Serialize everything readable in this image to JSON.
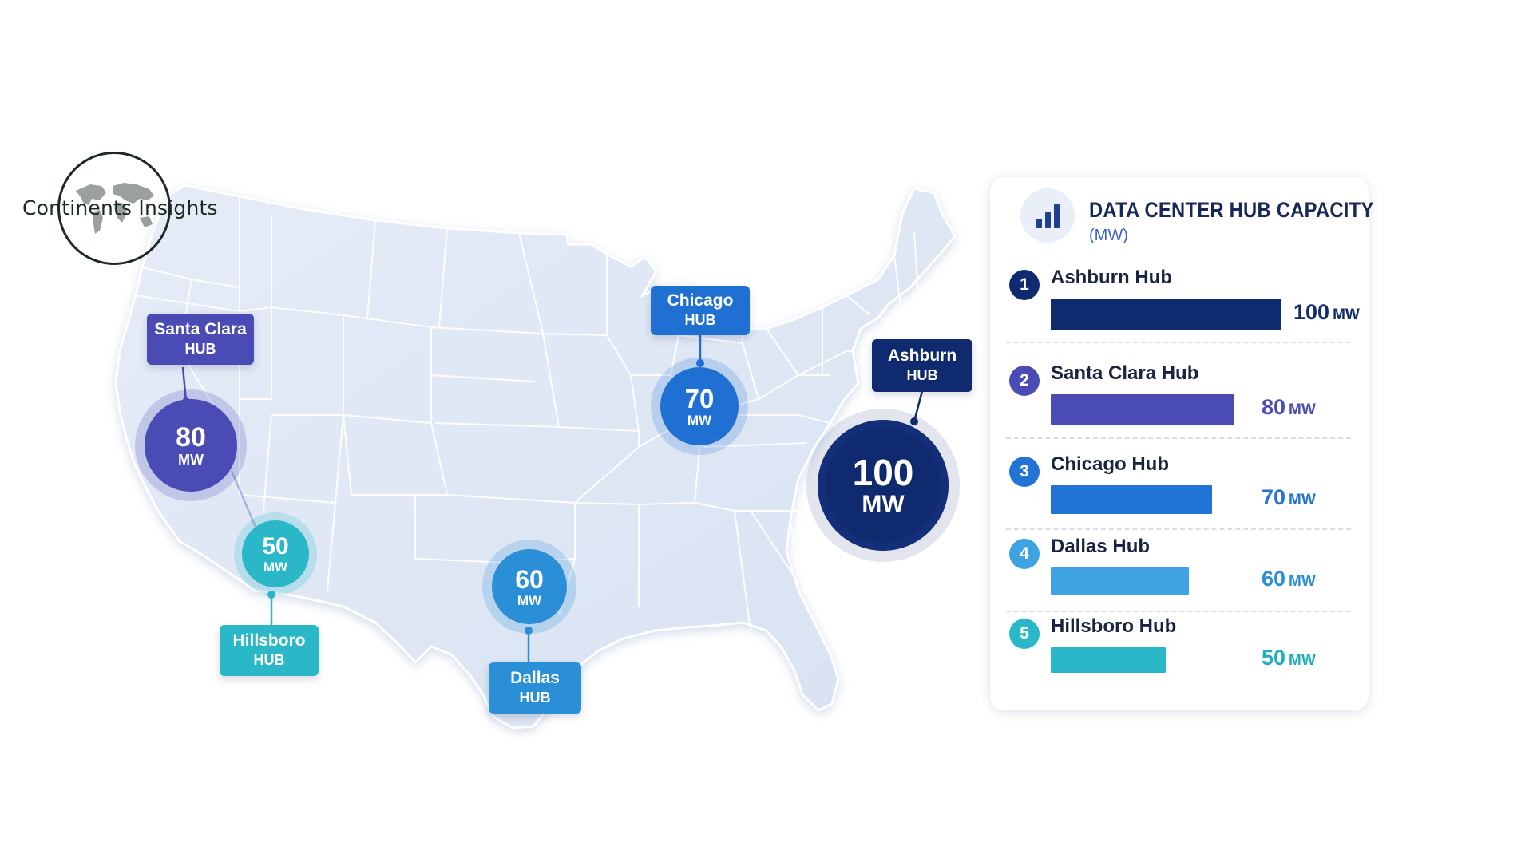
{
  "logo": {
    "text": "Continents Insights",
    "icon": "world-map-icon"
  },
  "panel": {
    "title": "DATA CENTER HUB CAPACITY",
    "subtitle": "(MW)",
    "icon": "bar-chart-icon",
    "rows": [
      {
        "rank": "1",
        "label": "Ashburn Hub",
        "value": "100",
        "unit": "MW",
        "capacity": 100,
        "color": "#0f2a6e",
        "valueColor": "#0f2a6e"
      },
      {
        "rank": "2",
        "label": "Santa Clara Hub",
        "value": "80",
        "unit": "MW",
        "capacity": 80,
        "color": "#4a4bb5",
        "valueColor": "#4a4bb5"
      },
      {
        "rank": "3",
        "label": "Chicago Hub",
        "value": "70",
        "unit": "MW",
        "capacity": 70,
        "color": "#2273d6",
        "valueColor": "#2273d6"
      },
      {
        "rank": "4",
        "label": "Dallas Hub",
        "value": "60",
        "unit": "MW",
        "capacity": 60,
        "color": "#3ea3e0",
        "valueColor": "#2a8fd6"
      },
      {
        "rank": "5",
        "label": "Hillsboro Hub",
        "value": "50",
        "unit": "MW",
        "capacity": 50,
        "color": "#2ab8c8",
        "valueColor": "#22aebf"
      }
    ]
  },
  "hubs": {
    "santa_clara": {
      "name": "Santa Clara",
      "tag": "HUB",
      "value": "80",
      "unit": "MW",
      "color": "#4a4bb5"
    },
    "hillsboro": {
      "name": "Hillsboro",
      "tag": "HUB",
      "value": "50",
      "unit": "MW",
      "color": "#2ab8c8"
    },
    "dallas": {
      "name": "Dallas",
      "tag": "HUB",
      "value": "60",
      "unit": "MW",
      "color": "#2a8fd6"
    },
    "chicago": {
      "name": "Chicago",
      "tag": "HUB",
      "value": "70",
      "unit": "MW",
      "color": "#1f70d2"
    },
    "ashburn": {
      "name": "Ashburn",
      "tag": "HUB",
      "value": "100",
      "unit": "MW",
      "color": "#0f2a6e"
    }
  }
}
